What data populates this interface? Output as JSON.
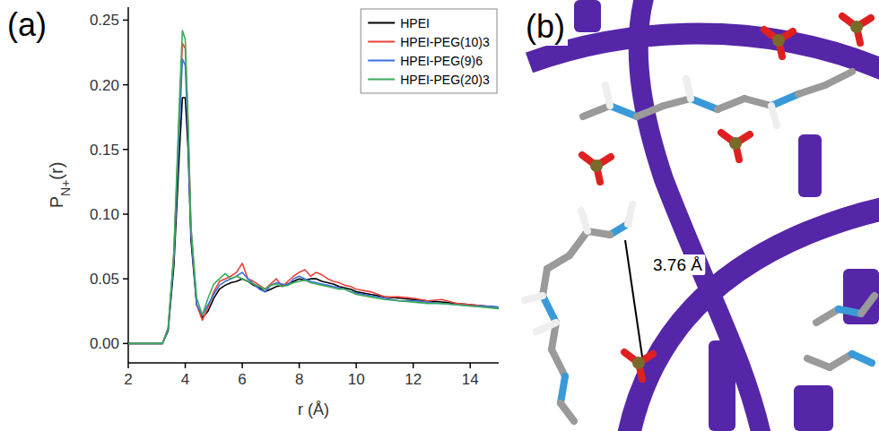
{
  "chart_data": {
    "type": "line",
    "panel_label": "(a)",
    "x_label": "r (Å)",
    "y_label": [
      "P",
      "N+",
      "(r)"
    ],
    "xlim": [
      2,
      15
    ],
    "ylim": [
      -0.015,
      0.26
    ],
    "xticks": [
      2,
      4,
      6,
      8,
      10,
      12,
      14
    ],
    "yticks": [
      {
        "value": 0,
        "label": "0.00"
      },
      {
        "value": 0.05,
        "label": "0.05"
      },
      {
        "value": 0.1,
        "label": "0.10"
      },
      {
        "value": 0.15,
        "label": "0.15"
      },
      {
        "value": 0.2,
        "label": "0.20"
      },
      {
        "value": 0.25,
        "label": "0.25"
      }
    ],
    "grid": false,
    "legend": "upper right",
    "x": [
      2,
      3.2,
      3.4,
      3.6,
      3.8,
      3.9,
      4.0,
      4.1,
      4.2,
      4.4,
      4.6,
      4.8,
      5.0,
      5.2,
      5.4,
      5.6,
      5.8,
      6.0,
      6.2,
      6.4,
      6.6,
      6.8,
      7.0,
      7.2,
      7.4,
      7.6,
      7.8,
      8.0,
      8.2,
      8.4,
      8.6,
      8.8,
      9.0,
      9.2,
      9.4,
      9.6,
      9.8,
      10,
      10.5,
      11,
      11.5,
      12,
      12.5,
      13,
      13.5,
      14,
      14.5,
      15
    ],
    "series": [
      {
        "name": "HPEI",
        "color": "#000000",
        "values": [
          0,
          0,
          0.01,
          0.06,
          0.15,
          0.19,
          0.19,
          0.15,
          0.08,
          0.03,
          0.02,
          0.025,
          0.035,
          0.042,
          0.045,
          0.047,
          0.048,
          0.05,
          0.048,
          0.045,
          0.043,
          0.04,
          0.042,
          0.044,
          0.045,
          0.046,
          0.048,
          0.05,
          0.049,
          0.05,
          0.05,
          0.048,
          0.047,
          0.046,
          0.044,
          0.043,
          0.042,
          0.04,
          0.038,
          0.036,
          0.035,
          0.034,
          0.033,
          0.032,
          0.031,
          0.03,
          0.029,
          0.028
        ]
      },
      {
        "name": "HPEI-PEG(10)3",
        "color": "#e8413b",
        "values": [
          0,
          0,
          0.012,
          0.07,
          0.18,
          0.232,
          0.228,
          0.17,
          0.09,
          0.03,
          0.018,
          0.028,
          0.04,
          0.048,
          0.05,
          0.052,
          0.055,
          0.062,
          0.05,
          0.048,
          0.045,
          0.042,
          0.046,
          0.05,
          0.044,
          0.048,
          0.052,
          0.055,
          0.057,
          0.052,
          0.055,
          0.053,
          0.05,
          0.048,
          0.047,
          0.045,
          0.044,
          0.042,
          0.04,
          0.036,
          0.036,
          0.035,
          0.033,
          0.034,
          0.031,
          0.03,
          0.029,
          0.027
        ]
      },
      {
        "name": "HPEI-PEG(9)6",
        "color": "#3a6fe0",
        "values": [
          0,
          0,
          0.011,
          0.066,
          0.17,
          0.22,
          0.215,
          0.16,
          0.085,
          0.03,
          0.022,
          0.03,
          0.038,
          0.045,
          0.048,
          0.05,
          0.052,
          0.055,
          0.05,
          0.046,
          0.042,
          0.04,
          0.045,
          0.047,
          0.046,
          0.045,
          0.05,
          0.052,
          0.05,
          0.048,
          0.047,
          0.046,
          0.045,
          0.044,
          0.043,
          0.042,
          0.04,
          0.039,
          0.037,
          0.035,
          0.033,
          0.033,
          0.032,
          0.031,
          0.03,
          0.029,
          0.029,
          0.028
        ]
      },
      {
        "name": "HPEI-PEG(20)3",
        "color": "#3aab5a",
        "values": [
          0,
          0,
          0.012,
          0.07,
          0.19,
          0.242,
          0.235,
          0.17,
          0.09,
          0.035,
          0.022,
          0.035,
          0.046,
          0.05,
          0.054,
          0.05,
          0.052,
          0.05,
          0.048,
          0.046,
          0.044,
          0.042,
          0.045,
          0.046,
          0.044,
          0.045,
          0.047,
          0.048,
          0.049,
          0.047,
          0.046,
          0.045,
          0.044,
          0.043,
          0.042,
          0.042,
          0.04,
          0.038,
          0.036,
          0.034,
          0.033,
          0.032,
          0.031,
          0.031,
          0.03,
          0.029,
          0.028,
          0.027
        ]
      }
    ]
  },
  "panel_b": {
    "label": "(b)",
    "distance_label": "3.76 Å"
  }
}
